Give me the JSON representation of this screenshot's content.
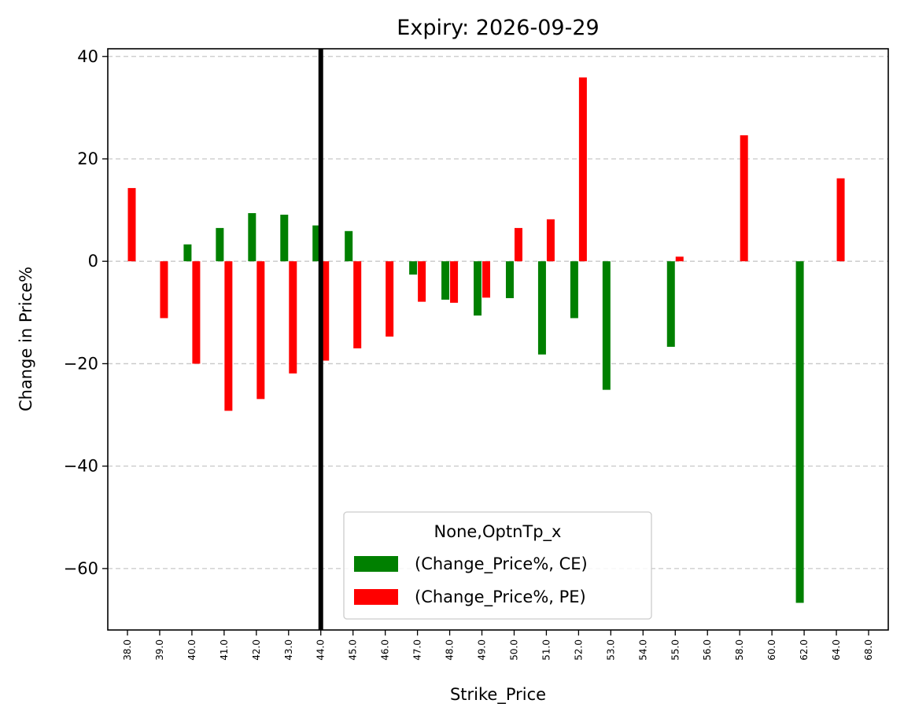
{
  "chart_data": {
    "type": "bar",
    "title": "Expiry: 2026-09-29",
    "xlabel": "Strike_Price",
    "ylabel": "Change in Price%",
    "ylim": [
      -72,
      41.5
    ],
    "yticks": [
      40,
      20,
      0,
      -20,
      -40,
      -60
    ],
    "ytick_labels": [
      "40",
      "20",
      "0",
      "−20",
      "−40",
      "−60"
    ],
    "grid": "y-dashed",
    "categories": [
      "38.0",
      "39.0",
      "40.0",
      "41.0",
      "42.0",
      "43.0",
      "44.0",
      "45.0",
      "46.0",
      "47.0",
      "48.0",
      "49.0",
      "50.0",
      "51.0",
      "52.0",
      "53.0",
      "54.0",
      "55.0",
      "56.0",
      "58.0",
      "60.0",
      "62.0",
      "64.0",
      "68.0"
    ],
    "series": [
      {
        "name": "(Change_Price%, CE)",
        "color": "#008000",
        "values": [
          null,
          null,
          3.3,
          6.5,
          9.4,
          9.1,
          7.0,
          5.9,
          null,
          -2.6,
          -7.5,
          -10.6,
          -7.2,
          -18.2,
          -11.1,
          -25.1,
          null,
          -16.7,
          null,
          null,
          null,
          -66.7,
          null,
          null
        ]
      },
      {
        "name": "(Change_Price%, PE)",
        "color": "#ff0000",
        "values": [
          14.3,
          -11.1,
          -20.0,
          -29.2,
          -26.9,
          -21.9,
          -19.4,
          -17.0,
          -14.7,
          -7.9,
          -8.1,
          -7.1,
          6.5,
          8.2,
          35.9,
          null,
          null,
          0.9,
          null,
          24.6,
          null,
          null,
          16.2,
          null
        ]
      }
    ],
    "vline": {
      "category": "44.0",
      "color": "#000000"
    },
    "legend": {
      "title": "None,OptnTp_x",
      "placement": "lower-center"
    }
  }
}
